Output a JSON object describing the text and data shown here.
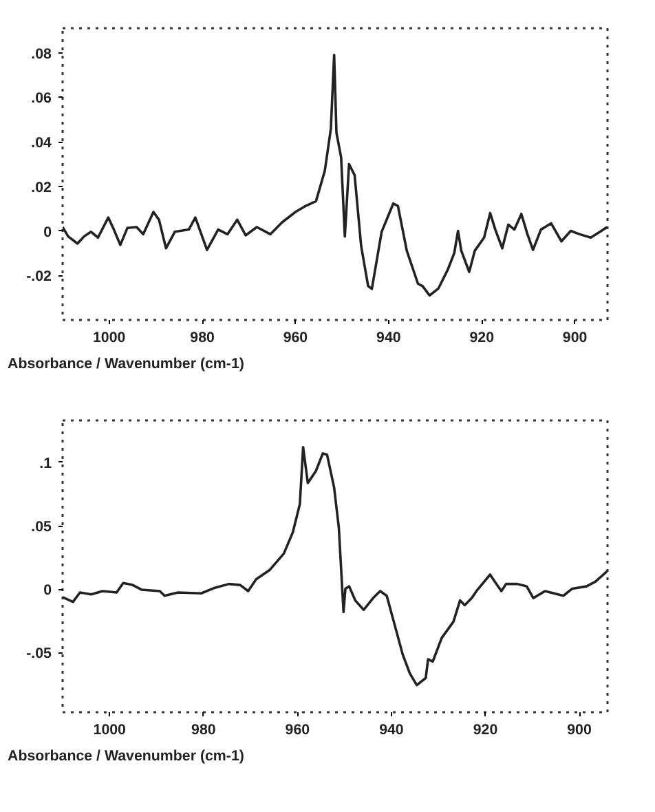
{
  "chart_data": [
    {
      "type": "line",
      "xlabel": "Absorbance / Wavenumber (cm-1)",
      "xlim": [
        1010,
        893
      ],
      "ylim": [
        -0.04,
        0.091
      ],
      "xticks": [
        1000,
        980,
        960,
        940,
        920,
        900
      ],
      "yticks": [
        {
          "value": -0.02,
          "label": "-.02"
        },
        {
          "value": 0,
          "label": "0"
        },
        {
          "value": 0.02,
          "label": ".02"
        },
        {
          "value": 0.04,
          "label": ".04"
        },
        {
          "value": 0.06,
          "label": ".06"
        },
        {
          "value": 0.08,
          "label": ".08"
        }
      ],
      "grid": false,
      "line_style": "solid",
      "x": [
        1010,
        1008.8,
        1006.8,
        1005.4,
        1003.9,
        1002.4,
        1000.2,
        999,
        997.6,
        996.1,
        994.1,
        992.7,
        990.5,
        989.3,
        987.8,
        985.9,
        982.9,
        981.5,
        979,
        976.6,
        974.6,
        972.5,
        970.7,
        968.3,
        965.4,
        962.9,
        960,
        958,
        955.6,
        953.7,
        952.4,
        951.7,
        951.2,
        950.2,
        949.4,
        948.5,
        947.3,
        945.9,
        944.4,
        943.6,
        941.5,
        939,
        938,
        936.1,
        933.7,
        932.7,
        931.2,
        929.3,
        927.3,
        925.9,
        925.1,
        924.4,
        922.7,
        921.5,
        919.5,
        918.2,
        917.1,
        915.6,
        914.3,
        913,
        911.5,
        910.2,
        909,
        907.3,
        905.1,
        902.9,
        900.9,
        899,
        896.6,
        894.6,
        893.1
      ],
      "series": [
        {
          "color": "#222222",
          "values": [
            0.0017,
            -0.0025,
            -0.0057,
            -0.0025,
            -0.0004,
            -0.003,
            0.006,
            0.0006,
            -0.0063,
            0.0013,
            0.0017,
            -0.0015,
            0.0085,
            0.005,
            -0.0078,
            -0.0004,
            0.0006,
            0.006,
            -0.0085,
            0.0006,
            -0.0015,
            0.005,
            -0.002,
            0.0017,
            -0.0015,
            0.0038,
            0.0085,
            0.011,
            0.0133,
            0.027,
            0.046,
            0.079,
            0.044,
            0.033,
            -0.0025,
            0.03,
            0.025,
            -0.0068,
            -0.0248,
            -0.026,
            -0.0004,
            0.0123,
            0.0112,
            -0.0089,
            -0.0237,
            -0.0248,
            -0.029,
            -0.0258,
            -0.0174,
            -0.0099,
            0,
            -0.0089,
            -0.0184,
            -0.0089,
            -0.003,
            0.008,
            0.0006,
            -0.0078,
            0.0028,
            0.0006,
            0.0076,
            -0.0015,
            -0.0085,
            0.0006,
            0.0034,
            -0.0047,
            0,
            -0.0015,
            -0.003,
            -0.0004,
            0.0017
          ]
        }
      ]
    },
    {
      "type": "line",
      "xlabel": "Absorbance / Wavenumber (cm-1)",
      "xlim": [
        1010,
        894
      ],
      "ylim": [
        -0.097,
        0.133
      ],
      "xticks": [
        1000,
        980,
        960,
        940,
        920,
        900
      ],
      "yticks": [
        {
          "value": -0.05,
          "label": "-.05"
        },
        {
          "value": 0,
          "label": "0"
        },
        {
          "value": 0.05,
          "label": ".05"
        },
        {
          "value": 0.1,
          "label": ".1"
        }
      ],
      "grid": false,
      "line_style": "solid",
      "x": [
        1010,
        1007.8,
        1006.3,
        1003.9,
        1001.5,
        998.5,
        997.1,
        995.1,
        993.2,
        989.3,
        988.3,
        985.4,
        980.5,
        977.6,
        974.6,
        972.2,
        970.5,
        968.8,
        965.9,
        962.9,
        961,
        959.5,
        958.8,
        957.8,
        956.1,
        954.6,
        953.7,
        952.2,
        951.2,
        950.2,
        949.8,
        949,
        947.7,
        945.9,
        943.9,
        942.4,
        941,
        939.5,
        937.6,
        936.1,
        934.6,
        932.7,
        932.2,
        931.2,
        929.3,
        926.8,
        925.4,
        924.4,
        922.9,
        921.9,
        919,
        918,
        916.6,
        915.6,
        913.2,
        911.2,
        909.8,
        907.3,
        903.4,
        901.5,
        898.5,
        896.6,
        894
      ],
      "series": [
        {
          "color": "#222222",
          "values": [
            -0.0063,
            -0.01,
            -0.0026,
            -0.0041,
            -0.0015,
            -0.0026,
            0.0048,
            0.0033,
            -0.0004,
            -0.0015,
            -0.0052,
            -0.0026,
            -0.0033,
            0.0011,
            0.0041,
            0.0033,
            -0.0015,
            0.0078,
            0.0152,
            0.0281,
            0.0448,
            0.067,
            0.112,
            0.0837,
            0.093,
            0.107,
            0.106,
            0.08,
            0.0485,
            -0.018,
            0.0004,
            0.0022,
            -0.0089,
            -0.0163,
            -0.007,
            -0.0015,
            -0.0052,
            -0.0256,
            -0.0515,
            -0.0663,
            -0.0756,
            -0.07,
            -0.0552,
            -0.057,
            -0.0385,
            -0.0256,
            -0.0089,
            -0.0126,
            -0.007,
            -0.0015,
            0.0115,
            0.0059,
            -0.0015,
            0.0041,
            0.0041,
            0.0022,
            -0.007,
            -0.0015,
            -0.0052,
            0.0004,
            0.0022,
            0.0059,
            0.0144
          ]
        }
      ]
    }
  ]
}
